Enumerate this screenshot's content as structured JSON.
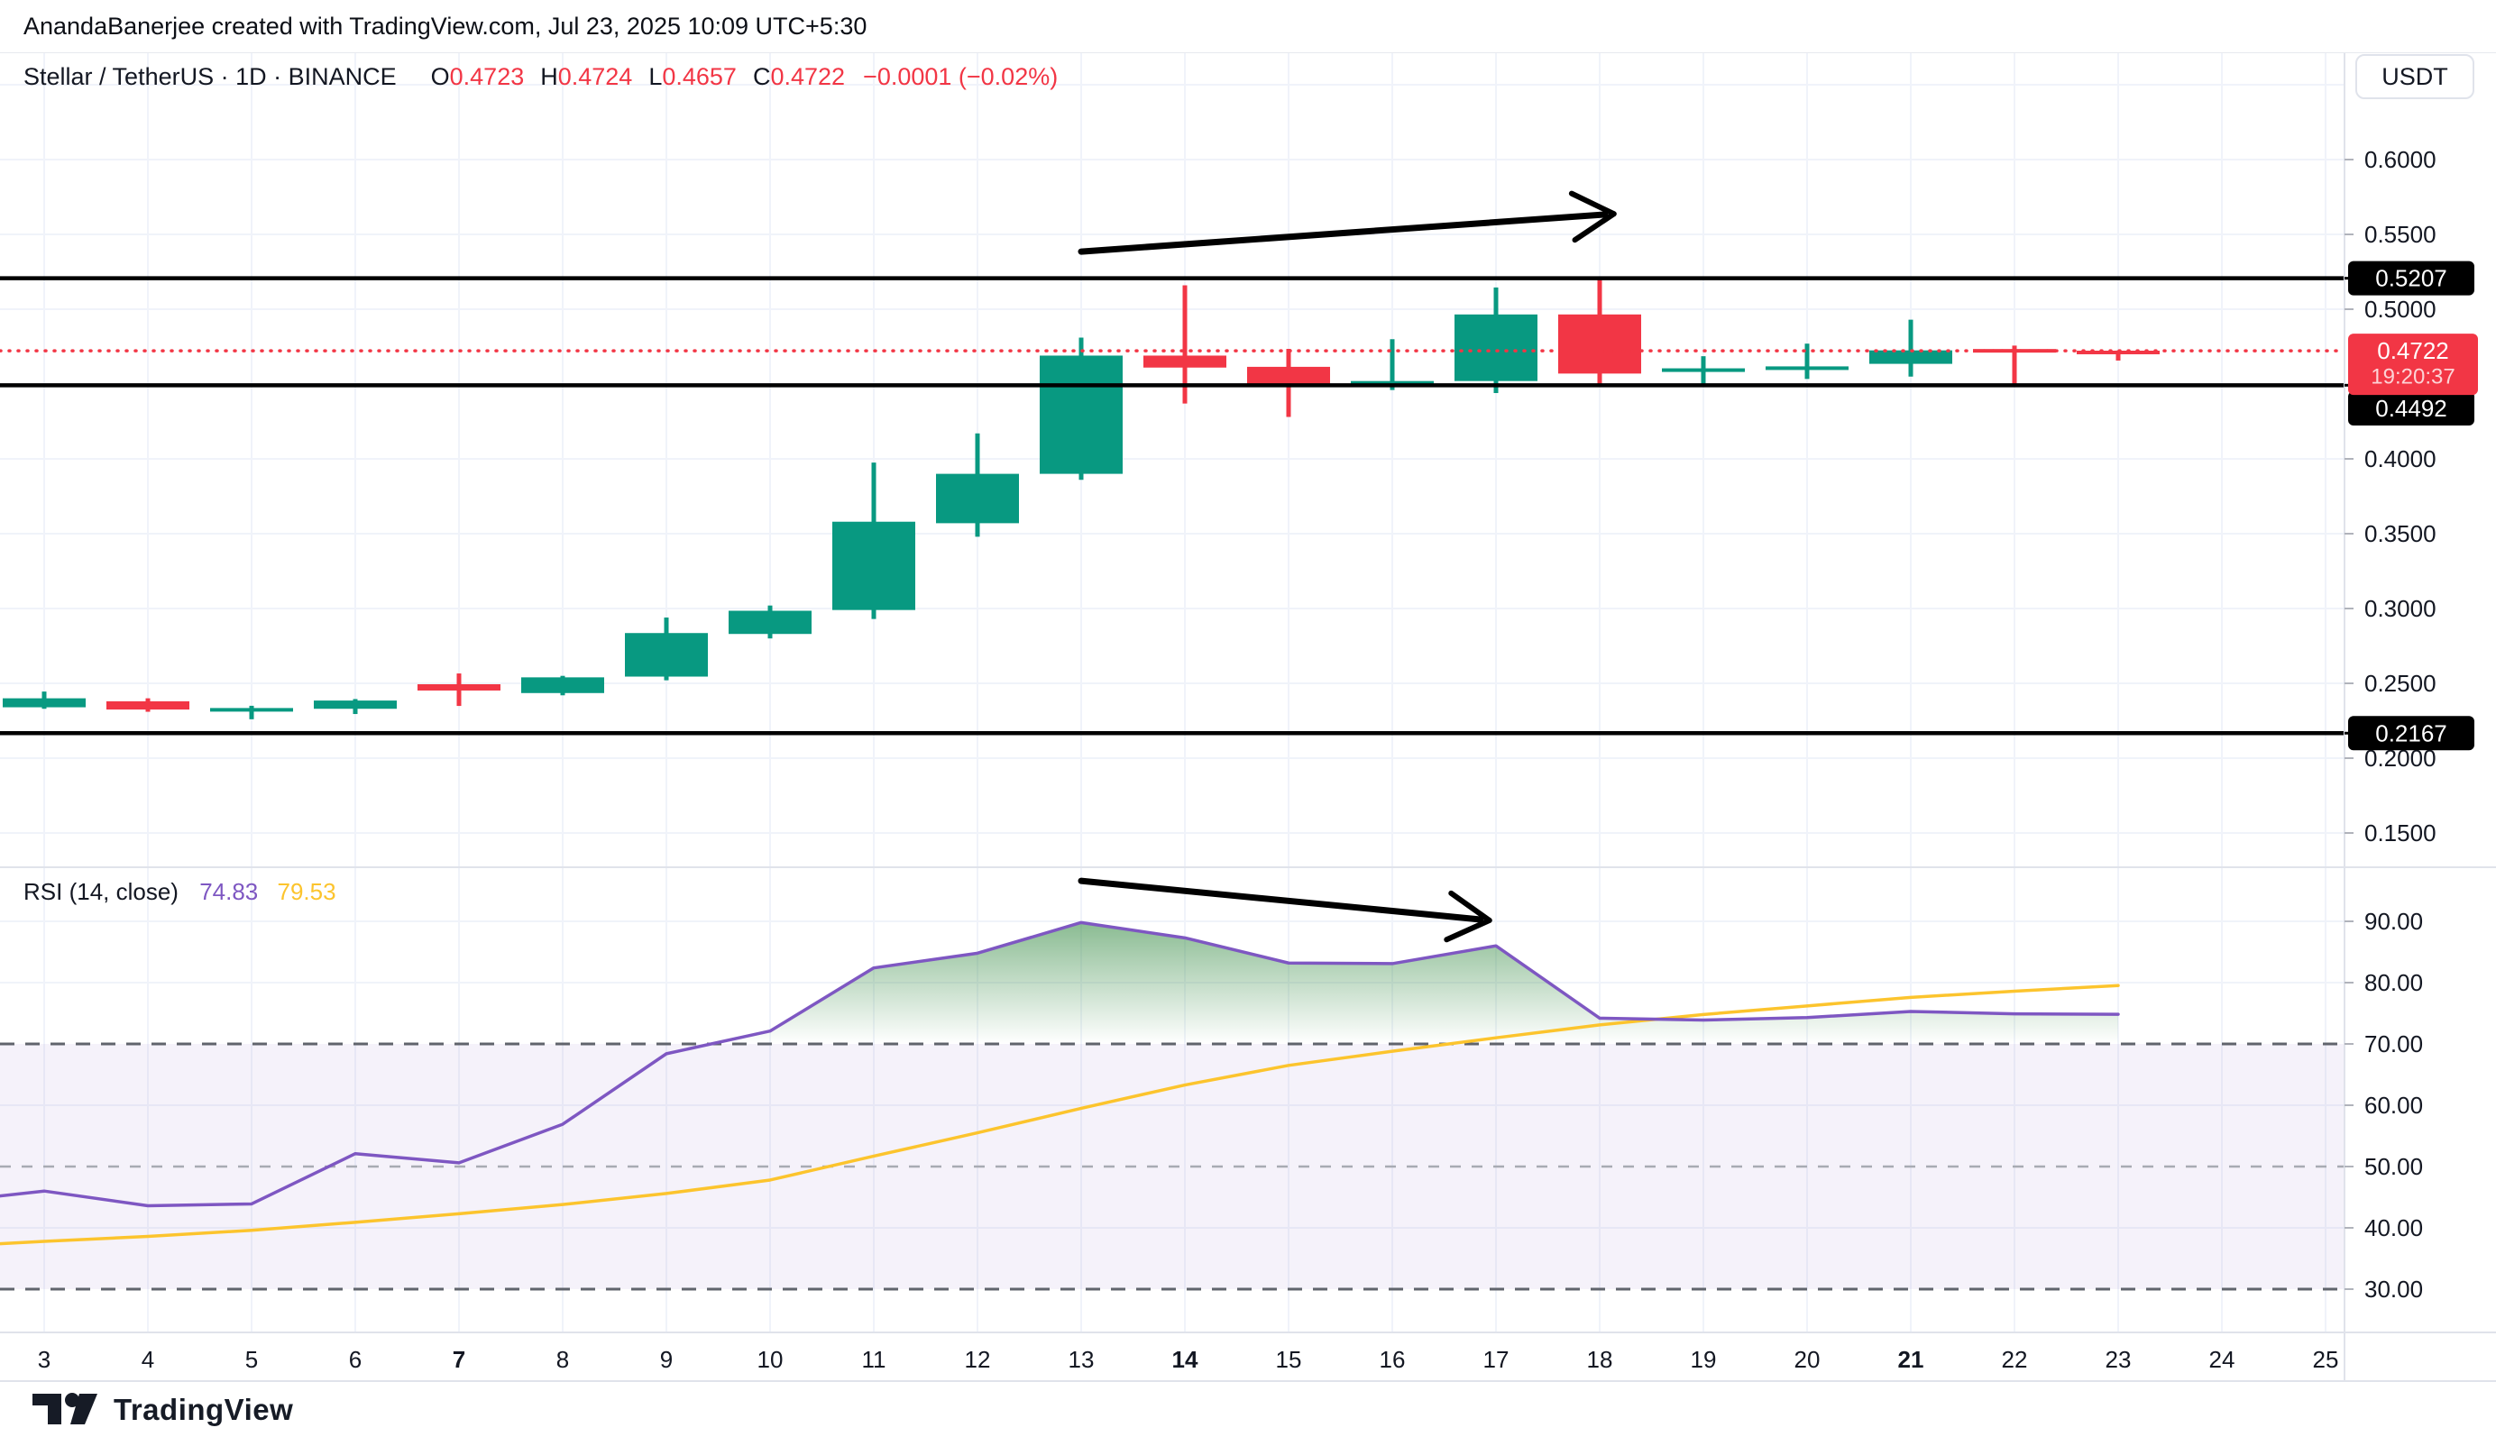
{
  "header": {
    "watermark": "AnandaBanerjee created with TradingView.com, Jul 23, 2025 10:09 UTC+5:30"
  },
  "symbol": {
    "title": "Stellar / TetherUS · 1D · BINANCE",
    "ohlc": [
      {
        "k": "O",
        "v": "0.4723"
      },
      {
        "k": "H",
        "v": "0.4724"
      },
      {
        "k": "L",
        "v": "0.4657"
      },
      {
        "k": "C",
        "v": "0.4722"
      }
    ],
    "change": "−0.0001 (−0.02%)"
  },
  "controls": {
    "currency_button": "USDT"
  },
  "rsi_legend": {
    "name": "RSI",
    "params": "(14, close)",
    "rsi_value": "74.83",
    "ma_value": "79.53"
  },
  "footer": {
    "brand": "TradingView"
  },
  "chart_data": {
    "type": "candlestick",
    "title": "Stellar / TetherUS 1D BINANCE with RSI(14)",
    "x_axis": {
      "days": [
        3,
        4,
        5,
        6,
        7,
        8,
        9,
        10,
        11,
        12,
        13,
        14,
        15,
        16,
        17,
        18,
        19,
        20,
        21,
        22,
        23,
        24,
        25
      ],
      "bold_days": [
        7,
        14,
        21
      ]
    },
    "price_axis": {
      "ticks": [
        {
          "label": "0.6000",
          "value": 0.6
        },
        {
          "label": "0.5500",
          "value": 0.55
        },
        {
          "label": "0.5000",
          "value": 0.5
        },
        {
          "label": "0.4000",
          "value": 0.4
        },
        {
          "label": "0.3500",
          "value": 0.35
        },
        {
          "label": "0.3000",
          "value": 0.3
        },
        {
          "label": "0.2500",
          "value": 0.25
        },
        {
          "label": "0.2000",
          "value": 0.2
        },
        {
          "label": "0.1500",
          "value": 0.15
        }
      ],
      "gridline_values": [
        0.65,
        0.6,
        0.55,
        0.5,
        0.45,
        0.4,
        0.35,
        0.3,
        0.25,
        0.2,
        0.15
      ],
      "levels": [
        {
          "label": "0.5207",
          "value": 0.5207
        },
        {
          "label": "0.4492",
          "value": 0.4492
        },
        {
          "label": "0.2167",
          "value": 0.2167
        }
      ],
      "last_price": {
        "label": "0.4722",
        "value": 0.4722,
        "countdown": "19:20:37",
        "direction": "down"
      }
    },
    "candles": [
      {
        "d": 3,
        "o": 0.234,
        "h": 0.2445,
        "l": 0.233,
        "c": 0.24
      },
      {
        "d": 4,
        "o": 0.238,
        "h": 0.24,
        "l": 0.231,
        "c": 0.2325
      },
      {
        "d": 5,
        "o": 0.2325,
        "h": 0.235,
        "l": 0.226,
        "c": 0.2335
      },
      {
        "d": 6,
        "o": 0.233,
        "h": 0.2395,
        "l": 0.2295,
        "c": 0.2385
      },
      {
        "d": 7,
        "o": 0.2494,
        "h": 0.2566,
        "l": 0.2349,
        "c": 0.2452
      },
      {
        "d": 8,
        "o": 0.2435,
        "h": 0.255,
        "l": 0.242,
        "c": 0.254
      },
      {
        "d": 9,
        "o": 0.2545,
        "h": 0.294,
        "l": 0.252,
        "c": 0.2836
      },
      {
        "d": 10,
        "o": 0.283,
        "h": 0.302,
        "l": 0.28,
        "c": 0.2985
      },
      {
        "d": 11,
        "o": 0.299,
        "h": 0.3975,
        "l": 0.293,
        "c": 0.358
      },
      {
        "d": 12,
        "o": 0.357,
        "h": 0.417,
        "l": 0.348,
        "c": 0.39
      },
      {
        "d": 13,
        "o": 0.39,
        "h": 0.481,
        "l": 0.386,
        "c": 0.469
      },
      {
        "d": 14,
        "o": 0.469,
        "h": 0.516,
        "l": 0.437,
        "c": 0.461
      },
      {
        "d": 15,
        "o": 0.4615,
        "h": 0.4735,
        "l": 0.428,
        "c": 0.45
      },
      {
        "d": 16,
        "o": 0.4495,
        "h": 0.48,
        "l": 0.446,
        "c": 0.452
      },
      {
        "d": 17,
        "o": 0.452,
        "h": 0.5145,
        "l": 0.444,
        "c": 0.4965
      },
      {
        "d": 18,
        "o": 0.4965,
        "h": 0.5207,
        "l": 0.448,
        "c": 0.457
      },
      {
        "d": 19,
        "o": 0.459,
        "h": 0.4686,
        "l": 0.4496,
        "c": 0.4605
      },
      {
        "d": 20,
        "o": 0.4605,
        "h": 0.477,
        "l": 0.4534,
        "c": 0.4618
      },
      {
        "d": 21,
        "o": 0.4635,
        "h": 0.493,
        "l": 0.455,
        "c": 0.4725
      },
      {
        "d": 22,
        "o": 0.4734,
        "h": 0.4757,
        "l": 0.4496,
        "c": 0.4722
      },
      {
        "d": 23,
        "o": 0.4723,
        "h": 0.4724,
        "l": 0.4657,
        "c": 0.4722
      }
    ],
    "rsi": {
      "axis_ticks": [
        90,
        80,
        70,
        60,
        50,
        40,
        30
      ],
      "overbought": 70,
      "middle": 50,
      "oversold": 30,
      "current": "74.83",
      "ma_current": "79.53",
      "line": [
        [
          2.57,
          45.2
        ],
        [
          3,
          46.0
        ],
        [
          4,
          43.6
        ],
        [
          5,
          43.9
        ],
        [
          6,
          52.1
        ],
        [
          7,
          50.6
        ],
        [
          8,
          56.9
        ],
        [
          9,
          68.4
        ],
        [
          10,
          72.1
        ],
        [
          11,
          82.4
        ],
        [
          12,
          84.8
        ],
        [
          13,
          89.8
        ],
        [
          14,
          87.3
        ],
        [
          15,
          83.2
        ],
        [
          16,
          83.1
        ],
        [
          17,
          86.0
        ],
        [
          18,
          74.2
        ],
        [
          19,
          73.9
        ],
        [
          20,
          74.3
        ],
        [
          21,
          75.3
        ],
        [
          22,
          74.9
        ],
        [
          23,
          74.83
        ]
      ],
      "ma": [
        [
          2.57,
          37.4
        ],
        [
          3,
          37.8
        ],
        [
          4,
          38.6
        ],
        [
          5,
          39.6
        ],
        [
          6,
          40.9
        ],
        [
          7,
          42.3
        ],
        [
          8,
          43.8
        ],
        [
          9,
          45.6
        ],
        [
          10,
          47.8
        ],
        [
          11,
          51.7
        ],
        [
          12,
          55.5
        ],
        [
          13,
          59.5
        ],
        [
          14,
          63.3
        ],
        [
          15,
          66.5
        ],
        [
          16,
          68.8
        ],
        [
          17,
          71.0
        ],
        [
          18,
          73.1
        ],
        [
          19,
          74.8
        ],
        [
          20,
          76.2
        ],
        [
          21,
          77.6
        ],
        [
          22,
          78.6
        ],
        [
          23,
          79.53
        ]
      ]
    },
    "annotations": {
      "arrows": [
        {
          "pane": "price",
          "from_day": 13.0,
          "from_val": 0.5385,
          "to_day": 18.05,
          "to_val": 0.5633
        },
        {
          "pane": "rsi",
          "from_day": 13.0,
          "from_val": 96.6,
          "to_day": 16.85,
          "to_val": 90.3
        }
      ]
    },
    "colors": {
      "up": "#089981",
      "down": "#f23645",
      "rsi_line": "#7e57c2",
      "rsi_ma": "#fcc42d",
      "grid": "#f0f3fa",
      "axis_border": "#e0e3eb",
      "band": "rgba(126,87,194,0.08)",
      "dashed_strong": "#60646c",
      "dashed_mid": "#a8abb3",
      "level_line": "#000000",
      "text": "#131722",
      "fill_green": "#358a43"
    }
  }
}
